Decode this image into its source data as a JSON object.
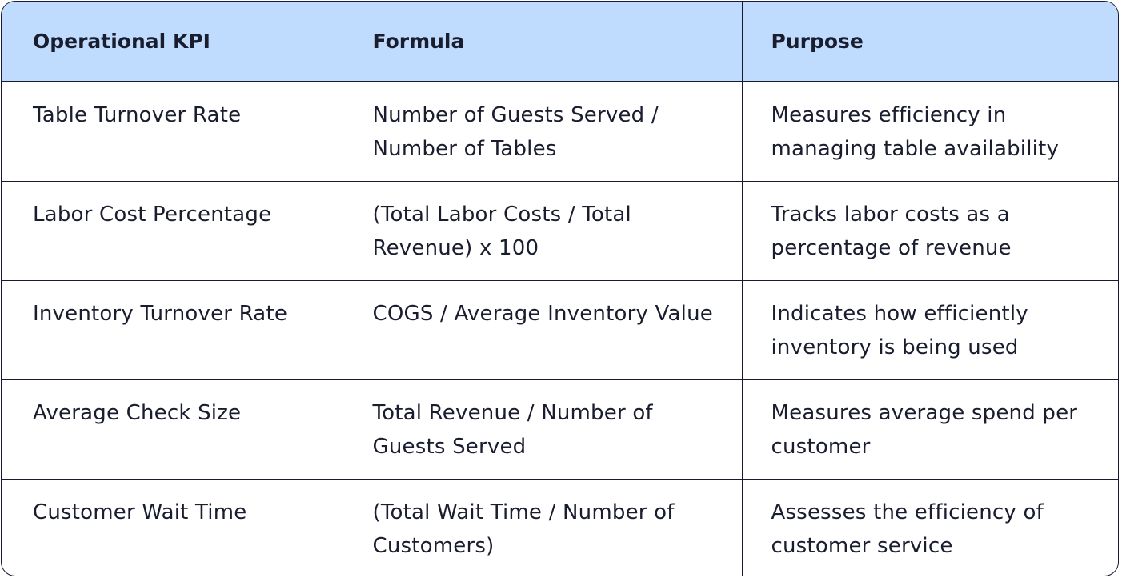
{
  "table": {
    "headers": [
      "Operational KPI",
      "Formula",
      "Purpose"
    ],
    "rows": [
      {
        "kpi": "Table Turnover Rate",
        "formula": "Number of Guests Served / Number of Tables",
        "purpose": "Measures efficiency in managing table availability"
      },
      {
        "kpi": "Labor Cost Percentage",
        "formula": "(Total Labor Costs / Total Revenue) x 100",
        "purpose": "Tracks labor costs as a percentage of revenue"
      },
      {
        "kpi": "Inventory Turnover Rate",
        "formula": "COGS / Average Inventory Value",
        "purpose": "Indicates how efficiently inventory is being used"
      },
      {
        "kpi": "Average Check Size",
        "formula": "Total Revenue / Number of Guests Served",
        "purpose": "Measures average spend per customer"
      },
      {
        "kpi": "Customer Wait Time",
        "formula": "(Total Wait Time / Number of Customers)",
        "purpose": "Assesses the efficiency of customer service"
      }
    ]
  },
  "colors": {
    "header_background": "#bfdcff",
    "border": "#1a1a2e",
    "text": "#1a1d2e"
  }
}
